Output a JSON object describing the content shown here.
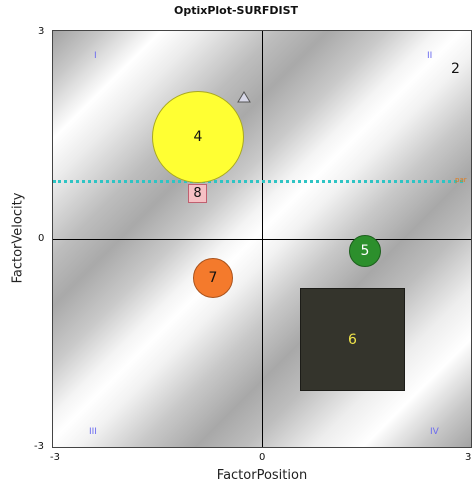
{
  "chart_data": {
    "type": "scatter",
    "title": "OptixPlot-SURFDIST",
    "xlabel": "FactorPosition",
    "ylabel": "FactorVelocity",
    "xlim": [
      -3,
      3
    ],
    "ylim": [
      -3,
      3
    ],
    "x_ticks": [
      "-3",
      "0",
      "3"
    ],
    "y_ticks": [
      "3",
      "0",
      "-3"
    ],
    "quadrants": [
      "I",
      "II",
      "III",
      "IV"
    ],
    "threshold_line": {
      "y": 0.85,
      "label": "par",
      "color": "#2ec4c4"
    },
    "points": [
      {
        "label": "2",
        "x": 2.8,
        "y": 2.4,
        "shape": "text"
      },
      {
        "label": "3",
        "x": -0.55,
        "y": 2.0,
        "shape": "marker"
      },
      {
        "label": "4",
        "x": -1.9,
        "y": 1.5,
        "shape": "circle",
        "color": "#ffff33"
      },
      {
        "label": "5",
        "x": 1.5,
        "y": -0.2,
        "shape": "circle",
        "color": "#2c8f2c"
      },
      {
        "label": "6",
        "x": 1.3,
        "y": -1.4,
        "shape": "square",
        "color": "#34342c"
      },
      {
        "label": "7",
        "x": -1.4,
        "y": -0.55,
        "shape": "circle",
        "color": "#f47a2c"
      },
      {
        "label": "8",
        "x": -1.85,
        "y": 0.65,
        "shape": "box",
        "color": "#f6c0c4"
      }
    ]
  }
}
